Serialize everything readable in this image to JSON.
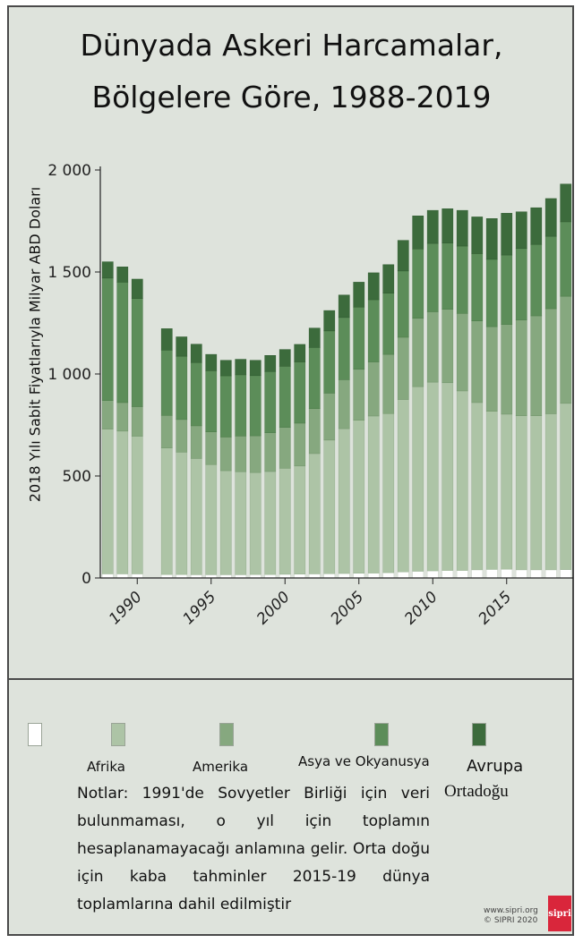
{
  "title_line1": "Dünyada Askeri Harcamalar,",
  "title_line2": "Bölgelere Göre, 1988-2019",
  "colors": {
    "bg": "#dee3dc",
    "series": [
      "#ffffff",
      "#adc4a6",
      "#86a87f",
      "#5c8d59",
      "#3c6b3c"
    ]
  },
  "legend": {
    "labels": [
      "Afrika",
      "Amerika",
      "Asya ve Okyanusya",
      "Avrupa",
      "Ortadoğu"
    ]
  },
  "notes": "Notlar: 1991'de Sovyetler Birliği için veri bulunmaması, o yıl için toplamın hesaplanamayacağı anlamına gelir. Orta doğu için kaba tahminler 2015-19 dünya toplamlarına dahil edilmiştir",
  "source_line1": "www.sipri.org",
  "source_line2": "© SIPRI 2020",
  "logo_text": "sipri",
  "chart_data": {
    "type": "bar",
    "stacked": true,
    "title": "Dünyada Askeri Harcamalar, Bölgelere Göre, 1988-2019",
    "ylabel": "2018 Yılı Sabit Fiyatlarıyla Milyar ABD Doları",
    "xlabel": "",
    "ylim": [
      0,
      2000
    ],
    "yticks": [
      0,
      500,
      1000,
      1500,
      2000
    ],
    "ytick_labels": [
      "0",
      "500",
      "1 000",
      "1 500",
      "2 000"
    ],
    "xtick_labels": [
      "1990",
      "1995",
      "2000",
      "2005",
      "2010",
      "2015"
    ],
    "grid": false,
    "categories": [
      1988,
      1989,
      1990,
      1992,
      1993,
      1994,
      1995,
      1996,
      1997,
      1998,
      1999,
      2000,
      2001,
      2002,
      2003,
      2004,
      2005,
      2006,
      2007,
      2008,
      2009,
      2010,
      2011,
      2012,
      2013,
      2014,
      2015,
      2016,
      2017,
      2018,
      2019
    ],
    "series": [
      {
        "values": [
          20,
          20,
          20,
          17,
          17,
          16,
          16,
          16,
          16,
          17,
          17,
          18,
          19,
          20,
          21,
          22,
          23,
          24,
          26,
          30,
          33,
          35,
          37,
          37,
          40,
          42,
          43,
          40,
          40,
          40,
          41
        ]
      },
      {
        "values": [
          710,
          700,
          675,
          620,
          600,
          570,
          540,
          510,
          505,
          500,
          505,
          520,
          530,
          590,
          655,
          710,
          750,
          770,
          780,
          845,
          905,
          925,
          920,
          880,
          820,
          775,
          760,
          755,
          755,
          765,
          815
        ]
      },
      {
        "values": [
          140,
          140,
          145,
          160,
          160,
          160,
          160,
          165,
          175,
          180,
          190,
          200,
          210,
          220,
          230,
          240,
          250,
          265,
          290,
          305,
          335,
          345,
          360,
          380,
          400,
          415,
          440,
          470,
          490,
          515,
          525
        ]
      },
      {
        "values": [
          600,
          590,
          530,
          320,
          310,
          310,
          300,
          300,
          300,
          295,
          300,
          300,
          300,
          300,
          305,
          305,
          305,
          305,
          300,
          325,
          340,
          335,
          325,
          330,
          330,
          330,
          340,
          350,
          350,
          355,
          365
        ]
      },
      {
        "values": [
          80,
          75,
          95,
          105,
          95,
          90,
          80,
          76,
          76,
          75,
          79,
          82,
          86,
          95,
          100,
          110,
          122,
          132,
          140,
          150,
          162,
          162,
          168,
          175,
          180,
          200,
          205,
          180,
          180,
          185,
          185
        ]
      }
    ]
  }
}
